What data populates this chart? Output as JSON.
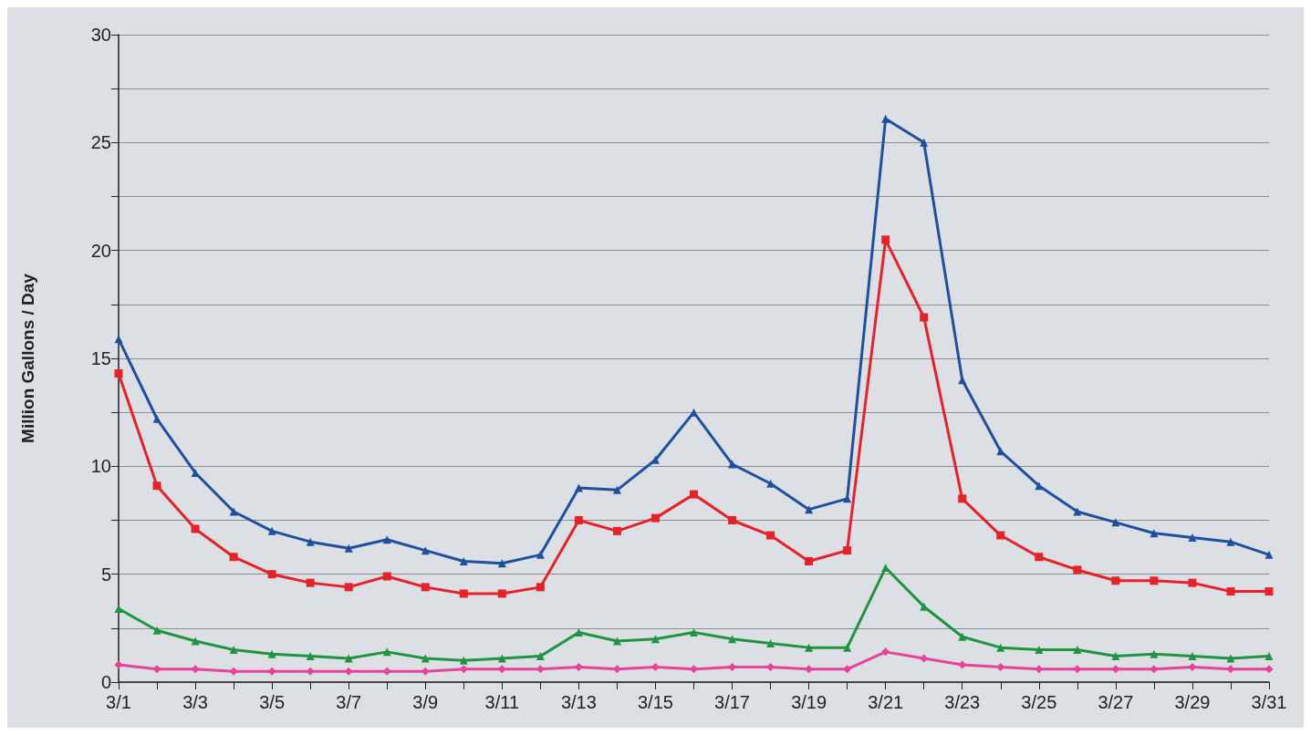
{
  "chart_data": {
    "type": "line",
    "ylabel": "Million Gallons / Day",
    "categories": [
      "3/1",
      null,
      "3/3",
      null,
      "3/5",
      null,
      "3/7",
      null,
      "3/9",
      null,
      "3/11",
      null,
      "3/13",
      null,
      "3/15",
      null,
      "3/17",
      null,
      "3/19",
      null,
      "3/21",
      null,
      "3/23",
      null,
      "3/25",
      null,
      "3/27",
      null,
      "3/29",
      null,
      "3/31"
    ],
    "ylim": [
      0,
      30
    ],
    "yticks": [
      0,
      {
        "value": 2.5,
        "label": null
      },
      5,
      {
        "value": 7.5,
        "label": null
      },
      10,
      {
        "value": 12.5,
        "label": null
      },
      15,
      {
        "value": 17.5,
        "label": null
      },
      20,
      {
        "value": 22.5,
        "label": null
      },
      25,
      {
        "value": 27.5,
        "label": null
      },
      30
    ],
    "grid": "y",
    "line_style": "solid",
    "series": [
      {
        "color": "#1f4fa0",
        "marker": "triangle",
        "values": [
          15.9,
          12.2,
          9.7,
          7.9,
          7.0,
          6.5,
          6.2,
          6.6,
          6.1,
          5.6,
          5.5,
          5.9,
          9.0,
          8.9,
          10.3,
          12.5,
          10.1,
          9.2,
          8.0,
          8.5,
          26.1,
          25.0,
          14.0,
          10.7,
          9.1,
          7.9,
          7.4,
          6.9,
          6.7,
          6.5,
          5.9
        ]
      },
      {
        "color": "#e8202a",
        "marker": "square",
        "values": [
          14.3,
          9.1,
          7.1,
          5.8,
          5.0,
          4.6,
          4.4,
          4.9,
          4.4,
          4.1,
          4.1,
          4.4,
          7.5,
          7.0,
          7.6,
          8.7,
          7.5,
          6.8,
          5.6,
          6.1,
          20.5,
          16.9,
          8.5,
          6.8,
          5.8,
          5.2,
          4.7,
          4.7,
          4.6,
          4.2,
          4.2
        ]
      },
      {
        "color": "#1e9444",
        "marker": "triangle",
        "values": [
          3.4,
          2.4,
          1.9,
          1.5,
          1.3,
          1.2,
          1.1,
          1.4,
          1.1,
          1.0,
          1.1,
          1.2,
          2.3,
          1.9,
          2.0,
          2.3,
          2.0,
          1.8,
          1.6,
          1.6,
          5.3,
          3.5,
          2.1,
          1.6,
          1.5,
          1.5,
          1.2,
          1.3,
          1.2,
          1.1,
          1.2
        ]
      },
      {
        "color": "#e8429a",
        "marker": "diamond",
        "values": [
          0.8,
          0.6,
          0.6,
          0.5,
          0.5,
          0.5,
          0.5,
          0.5,
          0.5,
          0.6,
          0.6,
          0.6,
          0.7,
          0.6,
          0.7,
          0.6,
          0.7,
          0.7,
          0.6,
          0.6,
          1.4,
          1.1,
          0.8,
          0.7,
          0.6,
          0.6,
          0.6,
          0.6,
          0.7,
          0.6,
          0.6
        ]
      }
    ]
  }
}
